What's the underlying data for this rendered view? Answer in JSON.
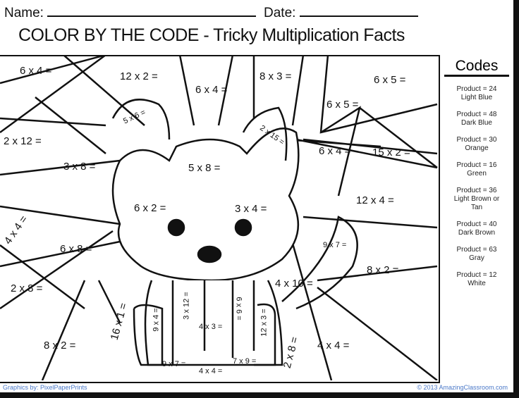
{
  "header": {
    "name_label": "Name:",
    "date_label": "Date:"
  },
  "title": "COLOR BY THE CODE - Tricky Multiplication Facts",
  "equations": [
    "6 x 4 =",
    "12 x 2 =",
    "6 x 4 =",
    "8 x 3 =",
    "6 x 5 =",
    "6 x 5 =",
    "5 x 6 =",
    "2 x 15 =",
    "2 x 12 =",
    "3 x 8 =",
    "5 x 8 =",
    "6 x 4 =",
    "15 x 2 =",
    "12 x 4 =",
    "6 x 2 =",
    "3 x 4 =",
    "4 x 4 =",
    "6 x 8 =",
    "9 x 7 =",
    "8 x 2 =",
    "4 x 10 =",
    "2 x 8 =",
    "16 x 1 =",
    "9 x 4 =",
    "3 x 12 =",
    "4 x 3 =",
    "6 x 6 =",
    "12 x 3 =",
    "2 x 8 =",
    "8 x 2 =",
    "4 x 4 =",
    "9 x 7 =",
    "4 x 4 =",
    "7 x 9 ="
  ],
  "codes": {
    "title": "Codes",
    "items": [
      {
        "product": "Product = 24",
        "color": "Light Blue"
      },
      {
        "product": "Product = 48",
        "color": "Dark Blue"
      },
      {
        "product": "Product = 30",
        "color": "Orange"
      },
      {
        "product": "Product = 16",
        "color": "Green"
      },
      {
        "product": "Product = 36",
        "color": "Light Brown or Tan"
      },
      {
        "product": "Product = 40",
        "color": "Dark Brown"
      },
      {
        "product": "Product = 63",
        "color": "Gray"
      },
      {
        "product": "Product = 12",
        "color": "White"
      }
    ]
  },
  "footer": {
    "credit": "Graphics by: PixelPaperPrints",
    "copyright": "© 2013 AmazingClassroom.com"
  }
}
